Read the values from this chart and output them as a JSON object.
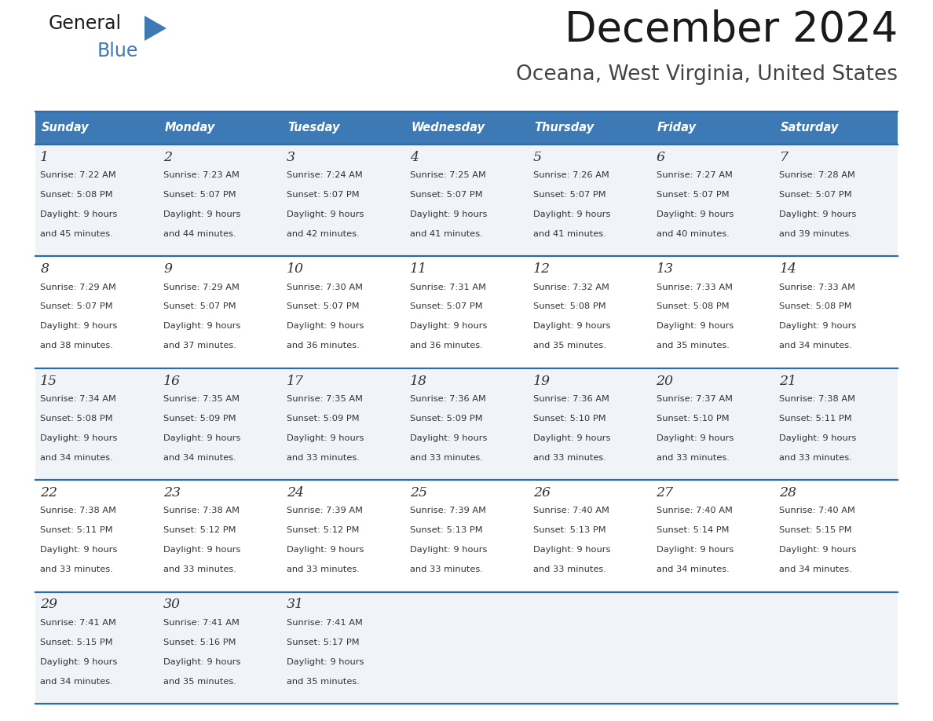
{
  "title": "December 2024",
  "subtitle": "Oceana, West Virginia, United States",
  "header_bg_color": "#3d7ab5",
  "header_text_color": "#ffffff",
  "cell_bg_color_odd": "#f0f4f8",
  "cell_bg_color_even": "#ffffff",
  "grid_line_color": "#2e6da4",
  "text_color": "#333333",
  "days_of_week": [
    "Sunday",
    "Monday",
    "Tuesday",
    "Wednesday",
    "Thursday",
    "Friday",
    "Saturday"
  ],
  "calendar_data": [
    [
      {
        "day": 1,
        "sunrise": "7:22 AM",
        "sunset": "5:08 PM",
        "daylight_hours": 9,
        "daylight_minutes": 45
      },
      {
        "day": 2,
        "sunrise": "7:23 AM",
        "sunset": "5:07 PM",
        "daylight_hours": 9,
        "daylight_minutes": 44
      },
      {
        "day": 3,
        "sunrise": "7:24 AM",
        "sunset": "5:07 PM",
        "daylight_hours": 9,
        "daylight_minutes": 42
      },
      {
        "day": 4,
        "sunrise": "7:25 AM",
        "sunset": "5:07 PM",
        "daylight_hours": 9,
        "daylight_minutes": 41
      },
      {
        "day": 5,
        "sunrise": "7:26 AM",
        "sunset": "5:07 PM",
        "daylight_hours": 9,
        "daylight_minutes": 41
      },
      {
        "day": 6,
        "sunrise": "7:27 AM",
        "sunset": "5:07 PM",
        "daylight_hours": 9,
        "daylight_minutes": 40
      },
      {
        "day": 7,
        "sunrise": "7:28 AM",
        "sunset": "5:07 PM",
        "daylight_hours": 9,
        "daylight_minutes": 39
      }
    ],
    [
      {
        "day": 8,
        "sunrise": "7:29 AM",
        "sunset": "5:07 PM",
        "daylight_hours": 9,
        "daylight_minutes": 38
      },
      {
        "day": 9,
        "sunrise": "7:29 AM",
        "sunset": "5:07 PM",
        "daylight_hours": 9,
        "daylight_minutes": 37
      },
      {
        "day": 10,
        "sunrise": "7:30 AM",
        "sunset": "5:07 PM",
        "daylight_hours": 9,
        "daylight_minutes": 36
      },
      {
        "day": 11,
        "sunrise": "7:31 AM",
        "sunset": "5:07 PM",
        "daylight_hours": 9,
        "daylight_minutes": 36
      },
      {
        "day": 12,
        "sunrise": "7:32 AM",
        "sunset": "5:08 PM",
        "daylight_hours": 9,
        "daylight_minutes": 35
      },
      {
        "day": 13,
        "sunrise": "7:33 AM",
        "sunset": "5:08 PM",
        "daylight_hours": 9,
        "daylight_minutes": 35
      },
      {
        "day": 14,
        "sunrise": "7:33 AM",
        "sunset": "5:08 PM",
        "daylight_hours": 9,
        "daylight_minutes": 34
      }
    ],
    [
      {
        "day": 15,
        "sunrise": "7:34 AM",
        "sunset": "5:08 PM",
        "daylight_hours": 9,
        "daylight_minutes": 34
      },
      {
        "day": 16,
        "sunrise": "7:35 AM",
        "sunset": "5:09 PM",
        "daylight_hours": 9,
        "daylight_minutes": 34
      },
      {
        "day": 17,
        "sunrise": "7:35 AM",
        "sunset": "5:09 PM",
        "daylight_hours": 9,
        "daylight_minutes": 33
      },
      {
        "day": 18,
        "sunrise": "7:36 AM",
        "sunset": "5:09 PM",
        "daylight_hours": 9,
        "daylight_minutes": 33
      },
      {
        "day": 19,
        "sunrise": "7:36 AM",
        "sunset": "5:10 PM",
        "daylight_hours": 9,
        "daylight_minutes": 33
      },
      {
        "day": 20,
        "sunrise": "7:37 AM",
        "sunset": "5:10 PM",
        "daylight_hours": 9,
        "daylight_minutes": 33
      },
      {
        "day": 21,
        "sunrise": "7:38 AM",
        "sunset": "5:11 PM",
        "daylight_hours": 9,
        "daylight_minutes": 33
      }
    ],
    [
      {
        "day": 22,
        "sunrise": "7:38 AM",
        "sunset": "5:11 PM",
        "daylight_hours": 9,
        "daylight_minutes": 33
      },
      {
        "day": 23,
        "sunrise": "7:38 AM",
        "sunset": "5:12 PM",
        "daylight_hours": 9,
        "daylight_minutes": 33
      },
      {
        "day": 24,
        "sunrise": "7:39 AM",
        "sunset": "5:12 PM",
        "daylight_hours": 9,
        "daylight_minutes": 33
      },
      {
        "day": 25,
        "sunrise": "7:39 AM",
        "sunset": "5:13 PM",
        "daylight_hours": 9,
        "daylight_minutes": 33
      },
      {
        "day": 26,
        "sunrise": "7:40 AM",
        "sunset": "5:13 PM",
        "daylight_hours": 9,
        "daylight_minutes": 33
      },
      {
        "day": 27,
        "sunrise": "7:40 AM",
        "sunset": "5:14 PM",
        "daylight_hours": 9,
        "daylight_minutes": 34
      },
      {
        "day": 28,
        "sunrise": "7:40 AM",
        "sunset": "5:15 PM",
        "daylight_hours": 9,
        "daylight_minutes": 34
      }
    ],
    [
      {
        "day": 29,
        "sunrise": "7:41 AM",
        "sunset": "5:15 PM",
        "daylight_hours": 9,
        "daylight_minutes": 34
      },
      {
        "day": 30,
        "sunrise": "7:41 AM",
        "sunset": "5:16 PM",
        "daylight_hours": 9,
        "daylight_minutes": 35
      },
      {
        "day": 31,
        "sunrise": "7:41 AM",
        "sunset": "5:17 PM",
        "daylight_hours": 9,
        "daylight_minutes": 35
      },
      null,
      null,
      null,
      null
    ]
  ],
  "logo_triangle_color": "#3d7ab5",
  "fig_width": 11.88,
  "fig_height": 9.18,
  "dpi": 100
}
